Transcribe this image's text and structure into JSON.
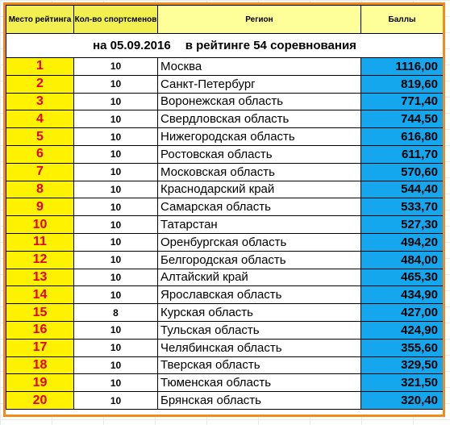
{
  "header": {
    "rank_col": "Место рейтинга",
    "count_col": "Кол-во спортсменов",
    "region_col": "Регион",
    "score_col": "Баллы"
  },
  "subtitle": {
    "date_text": "на 05.09.2016",
    "rating_text": "в рейтинге 54 соревнования"
  },
  "rows": [
    {
      "rank": "1",
      "count": "10",
      "region": "Москва",
      "score": "1116,00"
    },
    {
      "rank": "2",
      "count": "10",
      "region": "Санкт-Петербург",
      "score": "819,60"
    },
    {
      "rank": "3",
      "count": "10",
      "region": "Воронежская область",
      "score": "771,40"
    },
    {
      "rank": "4",
      "count": "10",
      "region": "Свердловская область",
      "score": "744,50"
    },
    {
      "rank": "5",
      "count": "10",
      "region": "Нижегородская область",
      "score": "616,80"
    },
    {
      "rank": "6",
      "count": "10",
      "region": "Ростовская область",
      "score": "611,70"
    },
    {
      "rank": "7",
      "count": "10",
      "region": "Московская область",
      "score": "570,60"
    },
    {
      "rank": "8",
      "count": "10",
      "region": "Краснодарский край",
      "score": "544,40"
    },
    {
      "rank": "9",
      "count": "10",
      "region": "Самарская область",
      "score": "533,70"
    },
    {
      "rank": "10",
      "count": "10",
      "region": "Татарстан",
      "score": "527,30"
    },
    {
      "rank": "11",
      "count": "10",
      "region": "Оренбургская область",
      "score": "494,20"
    },
    {
      "rank": "12",
      "count": "10",
      "region": "Белгородская область",
      "score": "484,00"
    },
    {
      "rank": "13",
      "count": "10",
      "region": "Алтайский край",
      "score": "465,30"
    },
    {
      "rank": "14",
      "count": "10",
      "region": "Ярославская область",
      "score": "434,90"
    },
    {
      "rank": "15",
      "count": "8",
      "region": "Курская область",
      "score": "427,00"
    },
    {
      "rank": "16",
      "count": "10",
      "region": "Тульская область",
      "score": "424,90"
    },
    {
      "rank": "17",
      "count": "10",
      "region": "Челябинская область",
      "score": "355,60"
    },
    {
      "rank": "18",
      "count": "10",
      "region": "Тверская область",
      "score": "329,50"
    },
    {
      "rank": "19",
      "count": "10",
      "region": "Тюменская область",
      "score": "321,50"
    },
    {
      "rank": "20",
      "count": "10",
      "region": "Брянская область",
      "score": "320,40"
    }
  ],
  "colors": {
    "frame": "#f28a1e",
    "rank_bg": "#fff200",
    "rank_text": "#e3001b",
    "score_bg": "#14a7ee",
    "header_bg": "#f2ef50"
  }
}
